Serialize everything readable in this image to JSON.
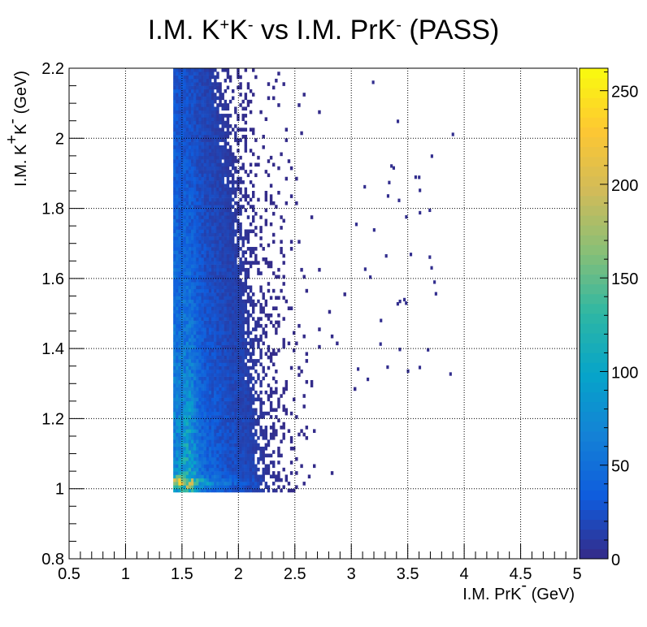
{
  "chart_data": {
    "type": "heatmap",
    "title": {
      "parts": [
        {
          "text": "I.M. K",
          "sup": false
        },
        {
          "text": "+",
          "sup": true
        },
        {
          "text": "K",
          "sup": false
        },
        {
          "text": "-",
          "sup": true
        },
        {
          "text": " vs I.M. PrK",
          "sup": false
        },
        {
          "text": "-",
          "sup": true
        },
        {
          "text": " (PASS)",
          "sup": false
        }
      ]
    },
    "xlabel": {
      "parts": [
        {
          "text": "I.M. PrK",
          "sup": false
        },
        {
          "text": "-",
          "sup": true
        },
        {
          "text": " (GeV)",
          "sup": false
        }
      ]
    },
    "ylabel": {
      "parts": [
        {
          "text": "I.M. K",
          "sup": false
        },
        {
          "text": "+",
          "sup": true
        },
        {
          "text": "K",
          "sup": false
        },
        {
          "text": "-",
          "sup": true
        },
        {
          "text": " (GeV)",
          "sup": false
        }
      ]
    },
    "xlim": [
      0.5,
      5
    ],
    "ylim": [
      0.8,
      2.2
    ],
    "xticks": [
      "0.5",
      "1",
      "1.5",
      "2",
      "2.5",
      "3",
      "3.5",
      "4",
      "4.5",
      "5"
    ],
    "yticks": [
      "0.8",
      "1",
      "1.2",
      "1.4",
      "1.6",
      "1.8",
      "2",
      "2.2"
    ],
    "zlim": [
      0,
      262
    ],
    "zticks": [
      "0",
      "50",
      "100",
      "150",
      "200",
      "250"
    ],
    "grid": true,
    "colormap": [
      "#352a87",
      "#0f5cdd",
      "#1481d6",
      "#06a4ca",
      "#2eb7a4",
      "#87bf77",
      "#d1bb59",
      "#fec832",
      "#f9fb0e"
    ],
    "xmin_cut": 1.43,
    "ymin_cut": 0.99,
    "band_y": 1.02,
    "band_peak": 255
  }
}
